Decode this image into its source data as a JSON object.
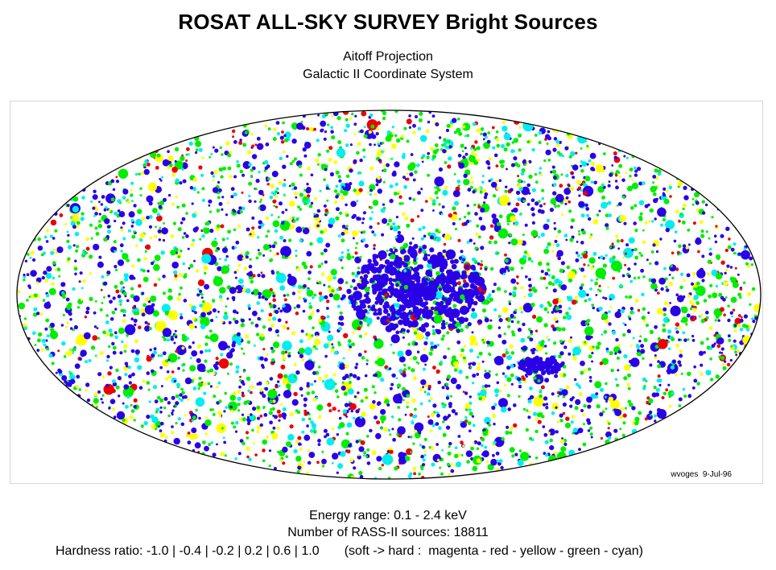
{
  "title": "ROSAT ALL-SKY SURVEY Bright Sources",
  "subtitle": [
    "Aitoff Projection",
    "Galactic II Coordinate System"
  ],
  "map": {
    "projection": "Aitoff",
    "coordinate_system": "Galactic II",
    "credit": "wvoges  9-Jul-96",
    "hardness_colors": {
      "magenta": "#2a00e6",
      "red": "#ee0000",
      "yellow": "#ffff00",
      "green": "#00ee00",
      "cyan": "#00eeee"
    },
    "outline_color": "#000000"
  },
  "footer": {
    "energy": "Energy range:  0.1 - 2.4 keV",
    "count": "Number of RASS-II sources:  18811",
    "hardness": "Hardness ratio: -1.0 | -0.4 | -0.2 | 0.2 | 0.6 | 1.0       (soft -> hard :  magenta - red - yellow - green - cyan)"
  }
}
